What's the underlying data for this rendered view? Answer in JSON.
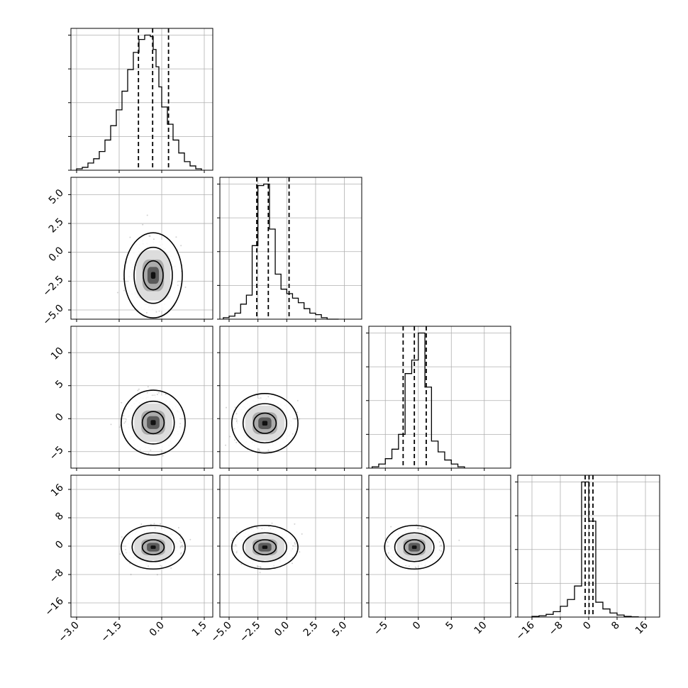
{
  "figure": {
    "kind": "corner-plot",
    "background": "#ffffff",
    "colors": {
      "line": "#000000",
      "grid": "#b0b0b0",
      "scatter": "#7f7f7f"
    },
    "grid": true
  },
  "chart_data": {
    "type": "corner",
    "parameters": [
      {
        "ticks": [
          -3.0,
          -1.5,
          0.0,
          1.5
        ],
        "tick_labels": [
          "−3.0",
          "−1.5",
          "0.0",
          "1.5"
        ],
        "range": [
          -3.2,
          1.8
        ],
        "quantiles": [
          -0.82,
          -0.32,
          0.24
        ],
        "histogram": {
          "bin_edges": [
            -3.0,
            -2.8,
            -2.6,
            -2.4,
            -2.2,
            -2.0,
            -1.8,
            -1.6,
            -1.4,
            -1.2,
            -1.0,
            -0.8,
            -0.6,
            -0.4,
            -0.3,
            -0.2,
            -0.1,
            0.0,
            0.2,
            0.4,
            0.6,
            0.8,
            1.0,
            1.2,
            1.4
          ],
          "counts": [
            1,
            2,
            5,
            8,
            13,
            21,
            31,
            42,
            55,
            70,
            82,
            91,
            94,
            93,
            84,
            72,
            58,
            44,
            32,
            21,
            12,
            6,
            3,
            1
          ]
        }
      },
      {
        "ticks": [
          -5.0,
          -2.5,
          0.0,
          2.5,
          5.0
        ],
        "tick_labels": [
          "−5.0",
          "−2.5",
          "0.0",
          "2.5",
          "5.0"
        ],
        "range": [
          -5.8,
          6.5
        ],
        "quantiles": [
          -2.6,
          -1.6,
          0.2
        ],
        "histogram": {
          "bin_edges": [
            -5.5,
            -5.0,
            -4.5,
            -4.0,
            -3.5,
            -3.0,
            -2.5,
            -2.0,
            -1.5,
            -1.0,
            -0.5,
            0.0,
            0.5,
            1.0,
            1.5,
            2.0,
            2.5,
            3.0,
            3.5,
            4.0,
            4.5
          ],
          "counts": [
            1,
            2,
            4,
            10,
            16,
            49,
            89,
            90,
            60,
            30,
            20,
            17,
            14,
            11,
            7,
            4,
            3,
            1,
            0,
            0
          ]
        }
      },
      {
        "ticks": [
          -5,
          0,
          5,
          10
        ],
        "tick_labels": [
          "−5",
          "0",
          "5",
          "10"
        ],
        "range": [
          -7.5,
          14.0
        ],
        "quantiles": [
          -2.3,
          -0.6,
          1.2
        ],
        "histogram": {
          "bin_edges": [
            -7.0,
            -6.0,
            -5.0,
            -4.0,
            -3.0,
            -2.0,
            -1.0,
            0.0,
            1.0,
            2.0,
            3.0,
            4.0,
            5.0,
            6.0,
            7.0
          ],
          "counts": [
            1,
            3,
            7,
            14,
            25,
            70,
            80,
            100,
            60,
            20,
            12,
            6,
            3,
            1
          ]
        }
      },
      {
        "ticks": [
          -16,
          -8,
          0,
          8,
          16
        ],
        "tick_labels": [
          "−16",
          "−8",
          "0",
          "8",
          "16"
        ],
        "range": [
          -20,
          20
        ],
        "quantiles": [
          -1.0,
          0.1,
          1.2
        ],
        "histogram": {
          "bin_edges": [
            -16.0,
            -14.0,
            -12.0,
            -10.0,
            -8.0,
            -6.0,
            -4.0,
            -2.0,
            0.0,
            2.0,
            4.0,
            6.0,
            8.0,
            10.0,
            12.0,
            14.0
          ],
          "counts": [
            0.5,
            1,
            2,
            4,
            8,
            13,
            23,
            100,
            71,
            11,
            6,
            3,
            1.5,
            0.5,
            0.2
          ]
        }
      }
    ],
    "pairs": [
      {
        "x": 0,
        "y": 1,
        "center": [
          -0.3,
          -2.0
        ],
        "spread": [
          0.5,
          1.8
        ],
        "contour_scale": [
          1.0,
          1.0
        ]
      },
      {
        "x": 0,
        "y": 2,
        "center": [
          -0.3,
          -0.6
        ],
        "spread": [
          0.55,
          2.4
        ],
        "contour_scale": [
          1.0,
          1.0
        ]
      },
      {
        "x": 1,
        "y": 2,
        "center": [
          -1.9,
          -0.7
        ],
        "spread": [
          1.4,
          2.2
        ],
        "contour_scale": [
          1.0,
          1.0
        ]
      },
      {
        "x": 0,
        "y": 3,
        "center": [
          -0.3,
          -0.3
        ],
        "spread": [
          0.55,
          3.0
        ],
        "contour_scale": [
          1.0,
          1.0
        ]
      },
      {
        "x": 1,
        "y": 3,
        "center": [
          -1.9,
          -0.3
        ],
        "spread": [
          1.4,
          3.0
        ],
        "contour_scale": [
          1.0,
          1.0
        ]
      },
      {
        "x": 2,
        "y": 3,
        "center": [
          -0.6,
          -0.3
        ],
        "spread": [
          2.2,
          3.0
        ],
        "contour_scale": [
          1.0,
          1.0
        ]
      }
    ]
  }
}
